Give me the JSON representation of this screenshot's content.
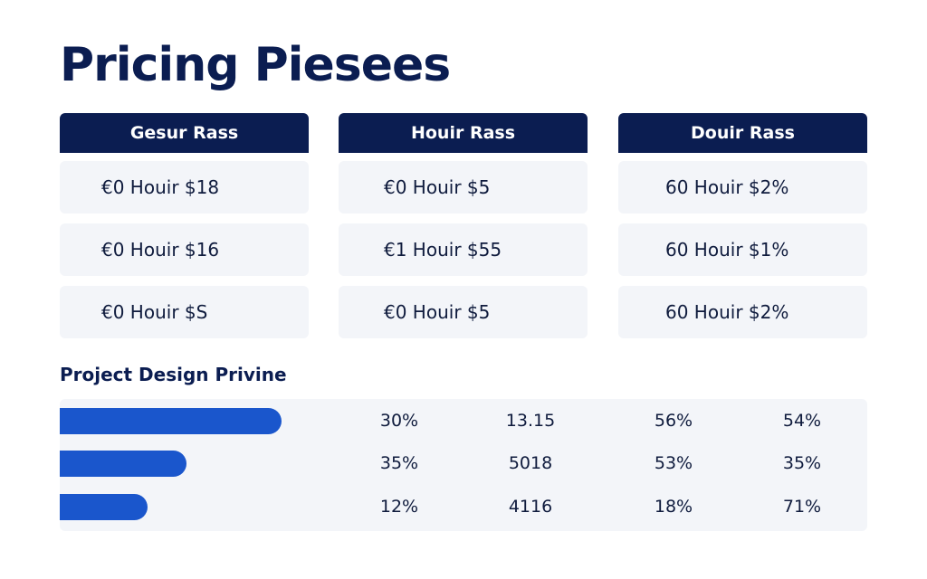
{
  "title": "Pricing Piesees",
  "pricing": {
    "columns": [
      {
        "header": "Gesur Rass",
        "rows": [
          "€0 Houir $18",
          "€0 Houir $16",
          "€0 Houir $S"
        ]
      },
      {
        "header": "Houir Rass",
        "rows": [
          "€0 Houir $5",
          "€1 Houir $55",
          "€0 Houir $5"
        ]
      },
      {
        "header": "Douir Rass",
        "rows": [
          "60 Houir $2%",
          "60 Houir $1%",
          "60 Houir $2%"
        ]
      }
    ]
  },
  "project": {
    "title": "Project Design Privine",
    "rows": [
      {
        "progress": 0.275,
        "values": [
          "30%",
          "13.15",
          "56%",
          "54%"
        ]
      },
      {
        "progress": 0.157,
        "values": [
          "35%",
          "5018",
          "53%",
          "35%"
        ]
      },
      {
        "progress": 0.109,
        "values": [
          "12%",
          "4116",
          "18%",
          "71%"
        ]
      }
    ]
  },
  "colors": {
    "brand": "#0b1d51",
    "bar": "#1a56cc",
    "cell_bg": "#f3f5f9"
  }
}
